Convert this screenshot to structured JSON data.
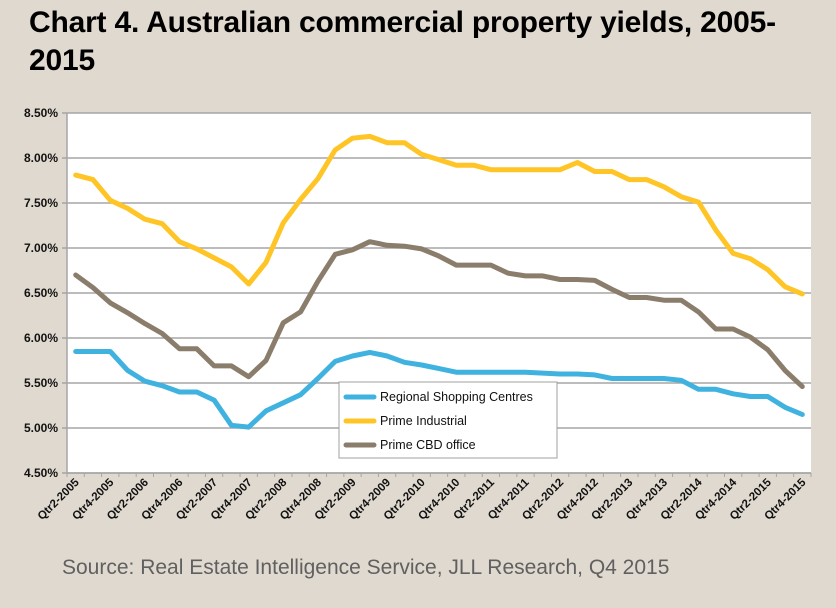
{
  "title": "Chart 4. Australian commercial property yields, 2005-2015",
  "source": "Source: Real Estate Intelligence Service, JLL Research, Q4 2015",
  "chart_data": {
    "type": "line",
    "title": "Chart 4. Australian commercial property yields, 2005-2015",
    "xlabel": "",
    "ylabel": "",
    "ylim": [
      4.5,
      8.5
    ],
    "ytick_step": 0.5,
    "ytick_labels": [
      "4.50%",
      "5.00%",
      "5.50%",
      "6.00%",
      "6.50%",
      "7.00%",
      "7.50%",
      "8.00%",
      "8.50%"
    ],
    "grid": true,
    "legend_position": "center-bottom",
    "x": [
      "Qtr2-2005",
      "Qtr3-2005",
      "Qtr4-2005",
      "Qtr1-2006",
      "Qtr2-2006",
      "Qtr3-2006",
      "Qtr4-2006",
      "Qtr1-2007",
      "Qtr2-2007",
      "Qtr3-2007",
      "Qtr4-2007",
      "Qtr1-2008",
      "Qtr2-2008",
      "Qtr3-2008",
      "Qtr4-2008",
      "Qtr1-2009",
      "Qtr2-2009",
      "Qtr3-2009",
      "Qtr4-2009",
      "Qtr1-2010",
      "Qtr2-2010",
      "Qtr3-2010",
      "Qtr4-2010",
      "Qtr1-2011",
      "Qtr2-2011",
      "Qtr3-2011",
      "Qtr4-2011",
      "Qtr1-2012",
      "Qtr2-2012",
      "Qtr3-2012",
      "Qtr4-2012",
      "Qtr1-2013",
      "Qtr2-2013",
      "Qtr3-2013",
      "Qtr4-2013",
      "Qtr1-2014",
      "Qtr2-2014",
      "Qtr3-2014",
      "Qtr4-2014",
      "Qtr1-2015",
      "Qtr2-2015",
      "Qtr3-2015",
      "Qtr4-2015"
    ],
    "xtick_labels": [
      "Qtr2-2005",
      "Qtr4-2005",
      "Qtr2-2006",
      "Qtr4-2006",
      "Qtr2-2007",
      "Qtr4-2007",
      "Qtr2-2008",
      "Qtr4-2008",
      "Qtr2-2009",
      "Qtr4-2009",
      "Qtr2-2010",
      "Qtr4-2010",
      "Qtr2-2011",
      "Qtr4-2011",
      "Qtr2-2012",
      "Qtr4-2012",
      "Qtr2-2013",
      "Qtr4-2013",
      "Qtr2-2014",
      "Qtr4-2014",
      "Qtr2-2015",
      "Qtr4-2015"
    ],
    "series": [
      {
        "name": "Regional Shopping Centres",
        "color": "#3fb2e0",
        "values": [
          5.85,
          5.85,
          5.85,
          5.64,
          5.52,
          5.47,
          5.4,
          5.4,
          5.31,
          5.03,
          5.01,
          5.19,
          5.28,
          5.37,
          5.55,
          5.74,
          5.8,
          5.84,
          5.8,
          5.73,
          5.7,
          5.66,
          5.62,
          5.62,
          5.62,
          5.62,
          5.62,
          5.61,
          5.6,
          5.6,
          5.59,
          5.55,
          5.55,
          5.55,
          5.55,
          5.53,
          5.43,
          5.43,
          5.38,
          5.35,
          5.35,
          5.23,
          5.15
        ]
      },
      {
        "name": "Prime Industrial",
        "color": "#ffc425",
        "values": [
          7.81,
          7.76,
          7.53,
          7.44,
          7.32,
          7.27,
          7.07,
          6.99,
          6.89,
          6.79,
          6.6,
          6.84,
          7.28,
          7.54,
          7.77,
          8.09,
          8.22,
          8.24,
          8.17,
          8.17,
          8.04,
          7.98,
          7.92,
          7.92,
          7.87,
          7.87,
          7.87,
          7.87,
          7.87,
          7.95,
          7.85,
          7.85,
          7.76,
          7.76,
          7.68,
          7.57,
          7.51,
          7.2,
          6.94,
          6.88,
          6.76,
          6.57,
          6.49
        ]
      },
      {
        "name": "Prime CBD office",
        "color": "#8b7d6b",
        "values": [
          6.7,
          6.56,
          6.39,
          6.28,
          6.16,
          6.05,
          5.88,
          5.88,
          5.69,
          5.69,
          5.57,
          5.75,
          6.17,
          6.29,
          6.63,
          6.93,
          6.98,
          7.07,
          7.03,
          7.02,
          6.99,
          6.91,
          6.81,
          6.81,
          6.81,
          6.72,
          6.69,
          6.69,
          6.65,
          6.65,
          6.64,
          6.54,
          6.45,
          6.45,
          6.42,
          6.42,
          6.29,
          6.1,
          6.1,
          6.01,
          5.87,
          5.64,
          5.46
        ]
      }
    ]
  }
}
